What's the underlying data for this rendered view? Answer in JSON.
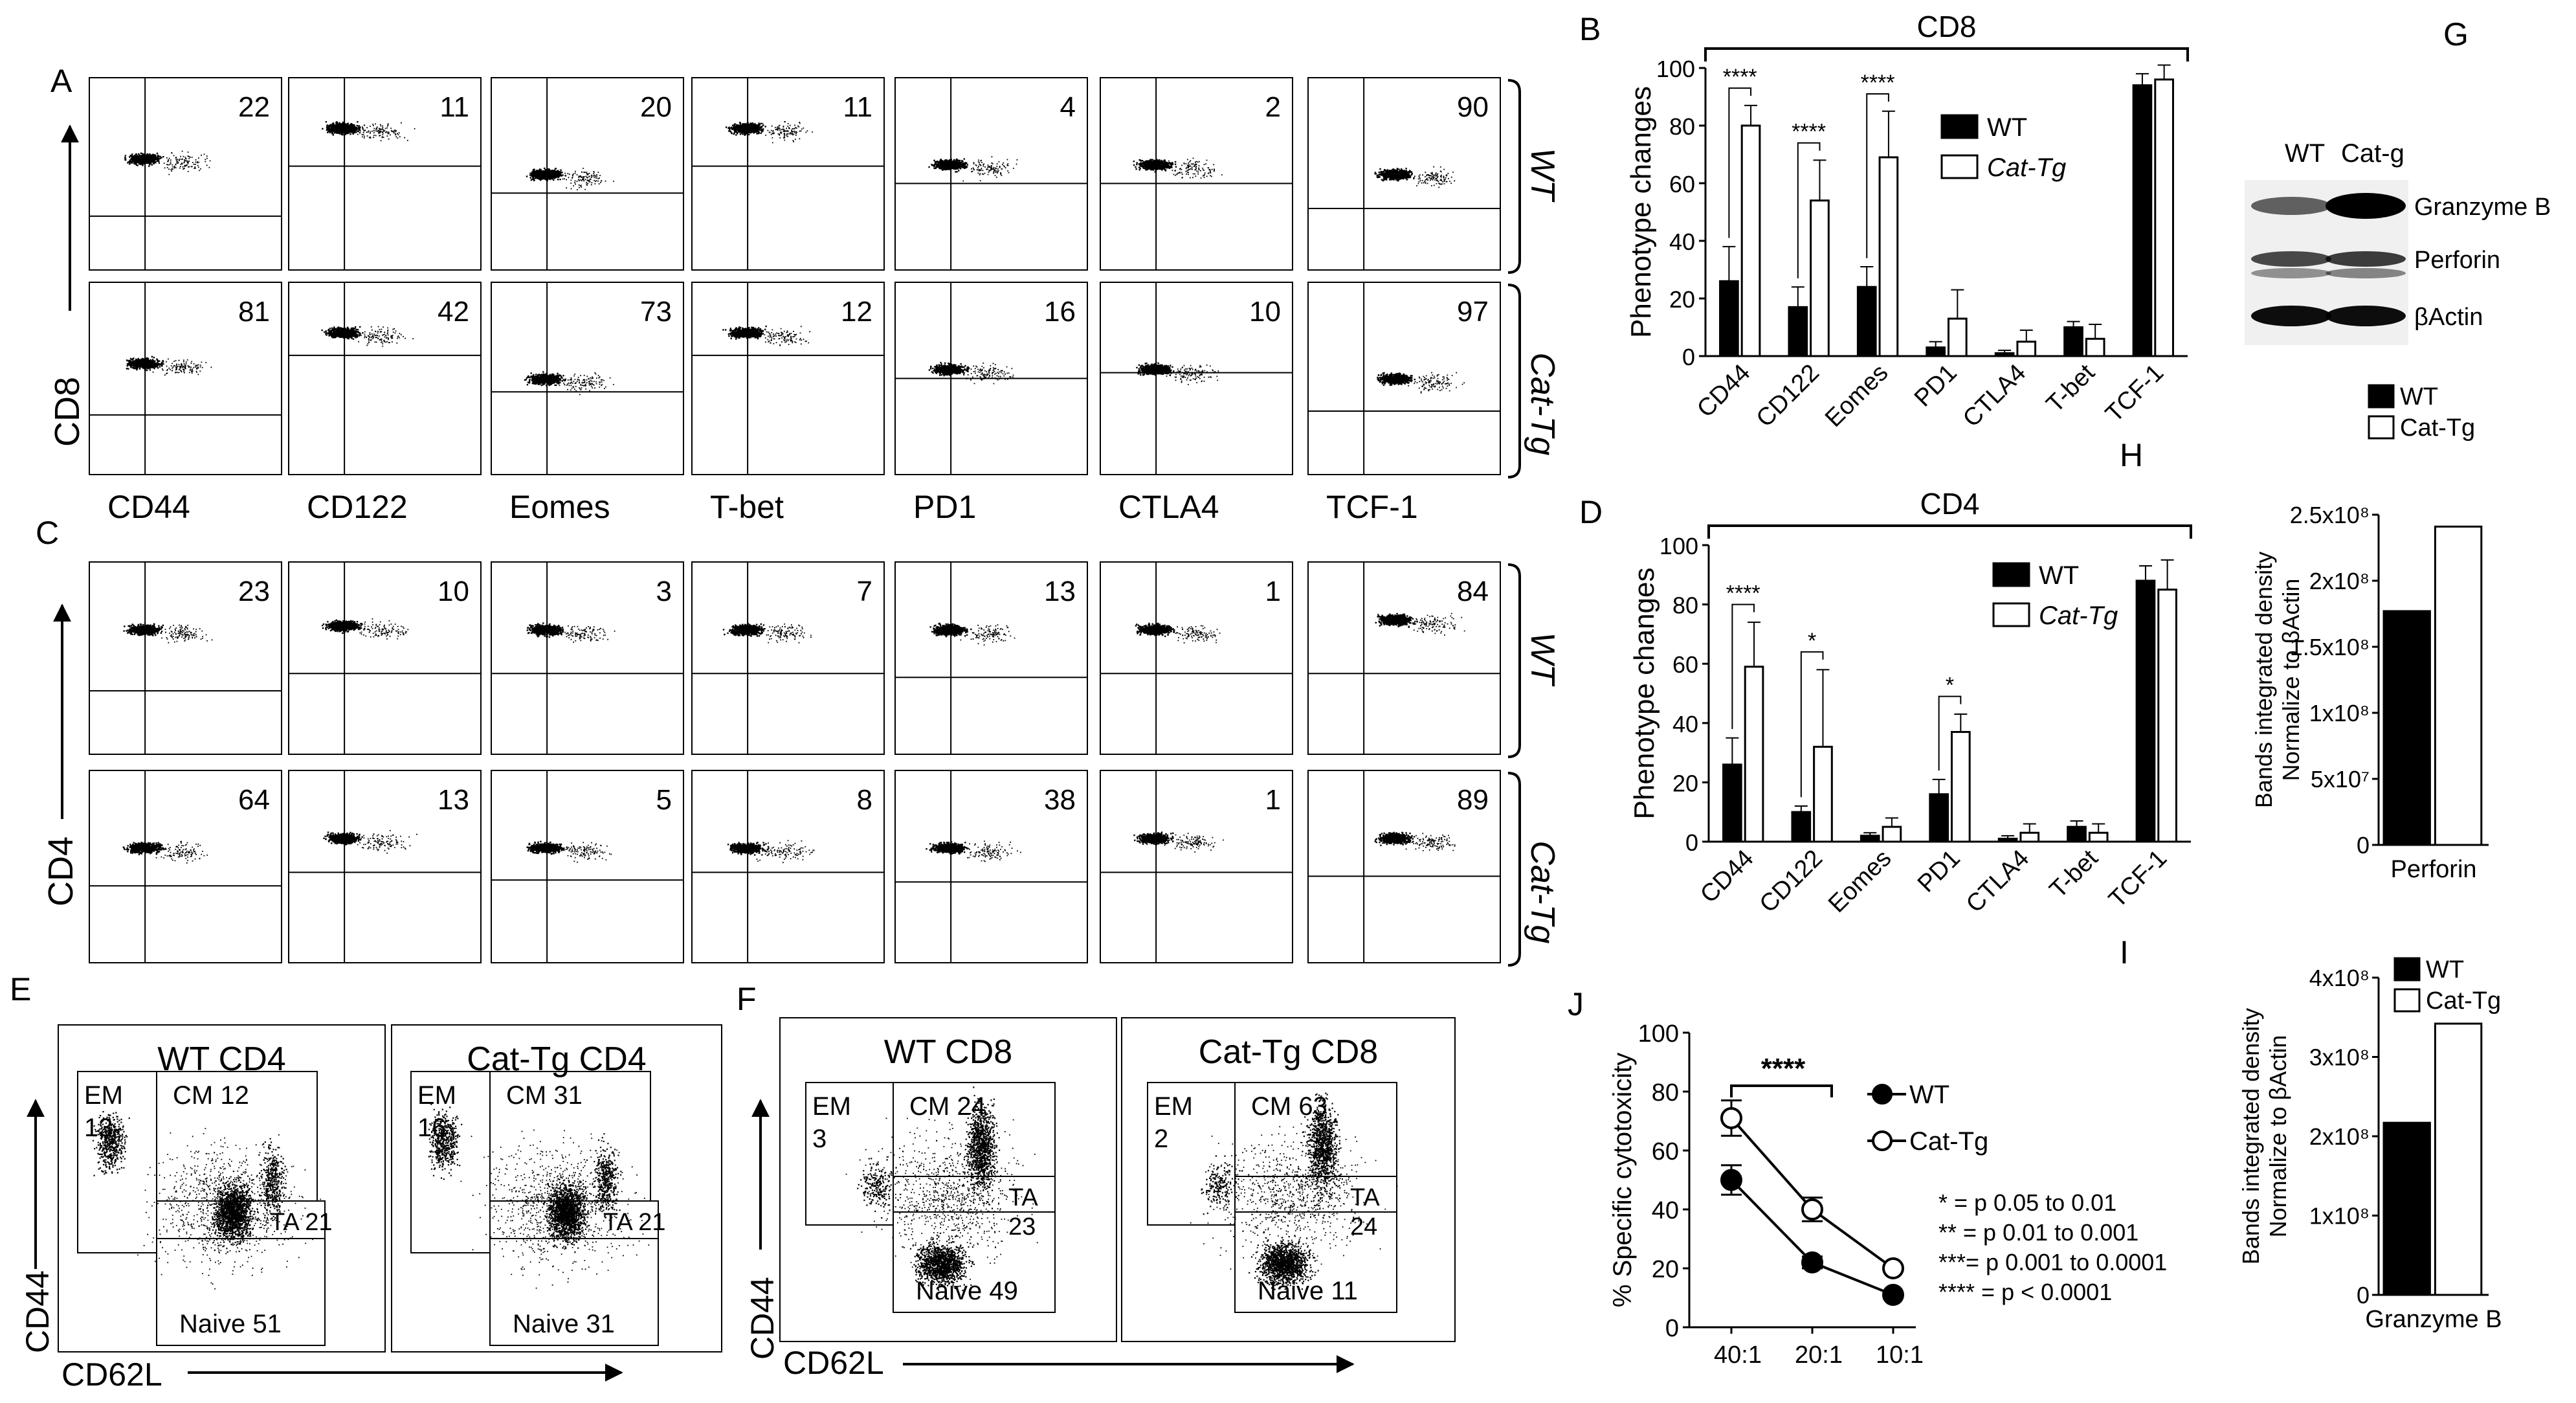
{
  "panel_letters": {
    "A": "A",
    "B": "B",
    "C": "C",
    "D": "D",
    "E": "E",
    "F": "F",
    "G": "G",
    "H": "H",
    "I": "I",
    "J": "J"
  },
  "flow_markers": [
    "CD44",
    "CD122",
    "Eomes",
    "T-bet",
    "PD1",
    "CTLA4",
    "TCF-1"
  ],
  "panel_A": {
    "y_label": "CD8",
    "row_labels": [
      "WT",
      "Cat-Tg"
    ],
    "rows": [
      {
        "group": "WT",
        "values": [
          "22",
          "11",
          "20",
          "11",
          "4",
          "2",
          "90"
        ]
      },
      {
        "group": "Cat-Tg",
        "values": [
          "81",
          "42",
          "73",
          "12",
          "16",
          "10",
          "97"
        ]
      }
    ]
  },
  "panel_C": {
    "y_label": "CD4",
    "row_labels": [
      "WT",
      "Cat-Tg"
    ],
    "rows": [
      {
        "group": "WT",
        "values": [
          "23",
          "10",
          "3",
          "7",
          "13",
          "1",
          "84"
        ]
      },
      {
        "group": "Cat-Tg",
        "values": [
          "64",
          "13",
          "5",
          "8",
          "38",
          "1",
          "89"
        ]
      }
    ]
  },
  "panel_E": {
    "x_label": "CD62L",
    "y_label": "CD44",
    "plots": [
      {
        "title": "WT CD4",
        "em": "EM",
        "em_val": "13",
        "cm": "CM 12",
        "ta": "TA 21",
        "naive": "Naive 51"
      },
      {
        "title": "Cat-Tg CD4",
        "em": "EM",
        "em_val": "16",
        "cm": "CM 31",
        "ta": "TA 21",
        "naive": "Naive 31"
      }
    ]
  },
  "panel_F": {
    "x_label": "CD62L",
    "y_label": "CD44",
    "plots": [
      {
        "title": "WT CD8",
        "em": "EM",
        "em_val": "3",
        "cm": "CM 24",
        "ta": "TA",
        "ta_val": "23",
        "naive": "Naive 49"
      },
      {
        "title": "Cat-Tg CD8",
        "em": "EM",
        "em_val": "2",
        "cm": "CM 63",
        "ta": "TA",
        "ta_val": "24",
        "naive": "Naive 11"
      }
    ]
  },
  "panel_G": {
    "lanes": [
      "WT",
      "Cat-g"
    ],
    "bands": [
      "Granzyme B",
      "Perforin",
      "βActin"
    ]
  },
  "chart_data": [
    {
      "panel": "B",
      "type": "bar",
      "title": "CD8",
      "xlabel": "",
      "ylabel": "Phenotype  changes",
      "ylim": [
        0,
        100
      ],
      "yticks": [
        "0",
        "20",
        "40",
        "60",
        "80",
        "100"
      ],
      "categories": [
        "CD44",
        "CD122",
        "Eomes",
        "PD1",
        "CTLA4",
        "T-bet",
        "TCF-1"
      ],
      "series": [
        {
          "name": "WT",
          "values": [
            26,
            17,
            24,
            3,
            1,
            10,
            94
          ],
          "errors": [
            12,
            7,
            7,
            2,
            1,
            2,
            4
          ]
        },
        {
          "name": "Cat-Tg",
          "values": [
            80,
            54,
            69,
            13,
            5,
            6,
            96
          ],
          "errors": [
            7,
            14,
            16,
            10,
            4,
            5,
            5
          ]
        }
      ],
      "significance": [
        "****",
        "****",
        "****"
      ],
      "legend_position": "top-right"
    },
    {
      "panel": "D",
      "type": "bar",
      "title": "CD4",
      "xlabel": "",
      "ylabel": "Phenotype  changes",
      "ylim": [
        0,
        100
      ],
      "yticks": [
        "0",
        "20",
        "40",
        "60",
        "80",
        "100"
      ],
      "categories": [
        "CD44",
        "CD122",
        "Eomes",
        "PD1",
        "CTLA4",
        "T-bet",
        "TCF-1"
      ],
      "series": [
        {
          "name": "WT",
          "values": [
            26,
            10,
            2,
            16,
            1,
            5,
            88
          ],
          "errors": [
            9,
            2,
            1,
            5,
            1,
            2,
            5
          ]
        },
        {
          "name": "Cat-Tg",
          "values": [
            59,
            32,
            5,
            37,
            3,
            3,
            85
          ],
          "errors": [
            15,
            26,
            3,
            6,
            3,
            3,
            10
          ]
        }
      ],
      "significance": [
        "****",
        "*",
        "*"
      ],
      "legend_position": "top-right"
    },
    {
      "panel": "H",
      "type": "bar",
      "title": "",
      "xlabel": "Perforin",
      "ylabel": "Bands integrated density Normalize to βActin",
      "ylim": [
        0,
        250000000
      ],
      "yticks": [
        "0",
        "5x10⁷",
        "1x10⁸",
        "1.5x10⁸",
        "2x10⁸",
        "2.5x10⁸"
      ],
      "categories": [
        "Perforin"
      ],
      "series": [
        {
          "name": "WT",
          "values": [
            177000000
          ]
        },
        {
          "name": "Cat-Tg",
          "values": [
            241000000
          ]
        }
      ],
      "legend_position": "top"
    },
    {
      "panel": "I",
      "type": "bar",
      "title": "",
      "xlabel": "Granzyme B",
      "ylabel": "Bands integrated density Normalize to βActin",
      "ylim": [
        0,
        400000000
      ],
      "yticks": [
        "0",
        "1x10⁸",
        "2x10⁸",
        "3x10⁸",
        "4x10⁸"
      ],
      "categories": [
        "Granzyme B"
      ],
      "series": [
        {
          "name": "WT",
          "values": [
            217000000
          ]
        },
        {
          "name": "Cat-Tg",
          "values": [
            342000000
          ]
        }
      ],
      "legend_position": "top"
    },
    {
      "panel": "J",
      "type": "line",
      "title": "",
      "xlabel": "",
      "ylabel": "% Specific cytotoxicity",
      "ylim": [
        0,
        100
      ],
      "yticks": [
        "0",
        "20",
        "40",
        "60",
        "80",
        "100"
      ],
      "x": [
        "40:1",
        "20:1",
        "10:1"
      ],
      "series": [
        {
          "name": "WT",
          "values": [
            50,
            22,
            11
          ],
          "errors": [
            5,
            2,
            1
          ]
        },
        {
          "name": "Cat-Tg",
          "values": [
            71,
            40,
            20
          ],
          "errors": [
            6,
            4,
            1
          ]
        }
      ],
      "significance": "****",
      "notes": [
        "* = p 0.05 to 0.01",
        "** = p 0.01 to 0.001",
        "***= p 0.001 to 0.0001",
        "**** = p < 0.0001"
      ],
      "legend_position": "top-right"
    }
  ]
}
